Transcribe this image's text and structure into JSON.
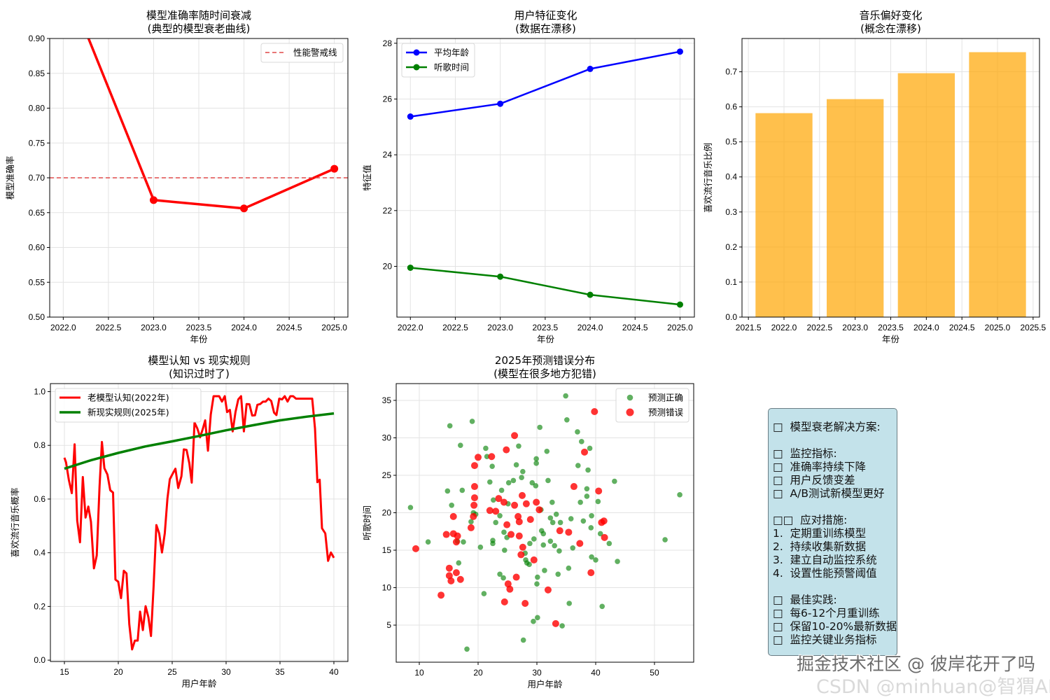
{
  "chart_data": [
    {
      "type": "line",
      "title": [
        "模型准确率随时间衰减",
        "(典型的模型衰老曲线)"
      ],
      "xlabel": "年份",
      "ylabel": "模型准确率",
      "xlim": [
        2021.85,
        2025.15
      ],
      "ylim": [
        0.5,
        0.9
      ],
      "xticks": [
        2022.0,
        2022.5,
        2023.0,
        2023.5,
        2024.0,
        2024.5,
        2025.0
      ],
      "xtick_labels": [
        "2022.0",
        "2022.5",
        "2023.0",
        "2023.5",
        "2024.0",
        "2024.5",
        "2025.0"
      ],
      "yticks": [
        0.5,
        0.55,
        0.6,
        0.65,
        0.7,
        0.75,
        0.8,
        0.85,
        0.9
      ],
      "ytick_labels": [
        "0.50",
        "0.55",
        "0.60",
        "0.65",
        "0.70",
        "0.75",
        "0.80",
        "0.85",
        "0.90"
      ],
      "grid": true,
      "legend": "top-right",
      "series": [
        {
          "name": "模型准确率",
          "kind": "line",
          "color": "#ff0000",
          "x": [
            2022,
            2023,
            2024,
            2025
          ],
          "y": [
            0.99,
            0.668,
            0.656,
            0.713
          ],
          "marker": true,
          "in_legend": false
        },
        {
          "name": "性能警戒线",
          "kind": "hline",
          "color": "#e04a4a",
          "y": 0.7,
          "dashed": true,
          "in_legend": true
        }
      ]
    },
    {
      "type": "line",
      "title": [
        "用户特征变化",
        "(数据在漂移)"
      ],
      "xlabel": "年份",
      "ylabel": "特征值",
      "xlim": [
        2021.85,
        2025.16
      ],
      "ylim": [
        18.18,
        28.17
      ],
      "xticks": [
        2022.0,
        2022.5,
        2023.0,
        2023.5,
        2024.0,
        2024.5,
        2025.0
      ],
      "xtick_labels": [
        "2022.0",
        "2022.5",
        "2023.0",
        "2023.5",
        "2024.0",
        "2024.5",
        "2025.0"
      ],
      "yticks": [
        20,
        22,
        24,
        26,
        28
      ],
      "ytick_labels": [
        "20",
        "22",
        "24",
        "26",
        "28"
      ],
      "grid": true,
      "legend": "top-left",
      "series": [
        {
          "name": "平均年龄",
          "kind": "line",
          "color": "#0000ff",
          "x": [
            2022,
            2023,
            2024,
            2025
          ],
          "y": [
            25.37,
            25.83,
            27.08,
            27.7
          ],
          "marker": true,
          "in_legend": true
        },
        {
          "name": "听歌时间",
          "kind": "line",
          "color": "#008000",
          "x": [
            2022,
            2023,
            2024,
            2025
          ],
          "y": [
            19.95,
            19.63,
            18.98,
            18.63
          ],
          "marker": true,
          "in_legend": true
        }
      ]
    },
    {
      "type": "bar",
      "title": [
        "音乐偏好变化",
        "(概念在漂移)"
      ],
      "xlabel": "年份",
      "ylabel": "喜欢流行音乐比例",
      "xlim": [
        2021.41,
        2025.59
      ],
      "ylim": [
        0,
        0.795
      ],
      "xticks": [
        2021.5,
        2022.0,
        2022.5,
        2023.0,
        2023.5,
        2024.0,
        2024.5,
        2025.0,
        2025.5
      ],
      "xtick_labels": [
        "2021.5",
        "2022.0",
        "2022.5",
        "2023.0",
        "2023.5",
        "2024.0",
        "2024.5",
        "2025.0",
        "2025.5"
      ],
      "yticks": [
        0,
        0.1,
        0.2,
        0.3,
        0.4,
        0.5,
        0.6,
        0.7
      ],
      "ytick_labels": [
        "0.0",
        "0.1",
        "0.2",
        "0.3",
        "0.4",
        "0.5",
        "0.6",
        "0.7"
      ],
      "grid": true,
      "legend": "none",
      "series": [
        {
          "name": "喜欢流行音乐比例",
          "kind": "bar",
          "color": "#ffa500",
          "bar_width": 0.8,
          "x": [
            2022,
            2023,
            2024,
            2025
          ],
          "y": [
            0.582,
            0.622,
            0.696,
            0.756
          ],
          "in_legend": false
        }
      ]
    },
    {
      "type": "line",
      "title": [
        "模型认知 vs 现实规则",
        "(知识过时了)"
      ],
      "xlabel": "用户年龄",
      "ylabel": "喜欢流行音乐概率",
      "xlim": [
        13.7,
        41.3
      ],
      "ylim": [
        -0.005,
        1.03
      ],
      "xticks": [
        15,
        20,
        25,
        30,
        35,
        40
      ],
      "xtick_labels": [
        "15",
        "20",
        "25",
        "30",
        "35",
        "40"
      ],
      "yticks": [
        0,
        0.2,
        0.4,
        0.6,
        0.8,
        1.0
      ],
      "ytick_labels": [
        "0.0",
        "0.2",
        "0.4",
        "0.6",
        "0.8",
        "1.0"
      ],
      "grid": true,
      "legend": "top-left",
      "series": [
        {
          "name": "老模型认知(2022年)",
          "kind": "line",
          "color": "#ff0000",
          "width": 3,
          "in_legend": true,
          "x": [
            15.0,
            15.15,
            15.41,
            15.69,
            15.95,
            16.19,
            16.45,
            16.71,
            16.96,
            17.22,
            17.46,
            17.74,
            18.0,
            18.26,
            18.48,
            18.71,
            18.99,
            19.25,
            19.51,
            19.73,
            19.99,
            20.25,
            20.51,
            20.76,
            21.02,
            21.28,
            21.54,
            21.8,
            22.02,
            22.28,
            22.53,
            22.79,
            23.03,
            23.27,
            23.53,
            23.79,
            24.05,
            24.31,
            24.56,
            24.78,
            25.04,
            25.3,
            25.56,
            25.86,
            26.08,
            26.33,
            26.59,
            26.81,
            27.07,
            27.33,
            27.59,
            27.85,
            28.06,
            28.32,
            28.58,
            28.84,
            29.36,
            29.62,
            29.88,
            30.09,
            30.35,
            30.61,
            30.87,
            31.13,
            31.39,
            31.65,
            31.9,
            32.16,
            32.42,
            32.68,
            32.9,
            33.16,
            33.42,
            33.67,
            33.93,
            34.19,
            34.45,
            34.67,
            34.93,
            35.19,
            35.44,
            35.7,
            35.96,
            36.22,
            36.48,
            37.99,
            38.25,
            38.47,
            38.68,
            38.9,
            39.2,
            39.46,
            39.72,
            40.0
          ],
          "y": [
            0.754,
            0.737,
            0.672,
            0.622,
            0.804,
            0.52,
            0.439,
            0.682,
            0.531,
            0.572,
            0.516,
            0.342,
            0.39,
            0.646,
            0.8125,
            0.715,
            0.691,
            0.633,
            0.624,
            0.3,
            0.292,
            0.231,
            0.333,
            0.323,
            0.134,
            0.04,
            0.073,
            0.073,
            0.181,
            0.112,
            0.201,
            0.16,
            0.09,
            0.273,
            0.503,
            0.472,
            0.401,
            0.472,
            0.602,
            0.674,
            0.694,
            0.713,
            0.641,
            0.685,
            0.785,
            0.783,
            0.733,
            0.661,
            0.885,
            0.863,
            0.83,
            0.863,
            0.893,
            0.78,
            0.915,
            0.983,
            0.983,
            0.963,
            0.983,
            0.924,
            0.932,
            0.852,
            0.924,
            0.971,
            0.983,
            0.852,
            0.954,
            0.953,
            0.911,
            0.912,
            0.951,
            0.954,
            0.963,
            0.963,
            0.974,
            0.965,
            0.922,
            0.913,
            0.974,
            0.971,
            0.983,
            0.963,
            0.983,
            0.983,
            0.974,
            0.974,
            0.863,
            0.663,
            0.672,
            0.491,
            0.472,
            0.37,
            0.401,
            0.381
          ]
        },
        {
          "name": "新现实规则(2025年)",
          "kind": "line",
          "color": "#008000",
          "width": 3.5,
          "in_legend": true,
          "x": [
            15,
            17.5,
            20,
            22.5,
            25,
            27.5,
            30,
            32.5,
            35,
            37.5,
            40
          ],
          "y": [
            0.713,
            0.745,
            0.772,
            0.796,
            0.815,
            0.835,
            0.856,
            0.875,
            0.893,
            0.907,
            0.919
          ]
        }
      ]
    },
    {
      "type": "scatter",
      "title": [
        "2025年预测错误分布",
        "(模型在很多地方犯错)"
      ],
      "xlabel": "用户年龄",
      "ylabel": "听歌时间",
      "xlim": [
        6.07,
        56.67
      ],
      "ylim": [
        0.05,
        37.24
      ],
      "xticks": [
        10,
        20,
        30,
        40,
        50
      ],
      "xtick_labels": [
        "10",
        "20",
        "30",
        "40",
        "50"
      ],
      "yticks": [
        5,
        10,
        15,
        20,
        25,
        30,
        35
      ],
      "ytick_labels": [
        "5",
        "10",
        "15",
        "20",
        "25",
        "30",
        "35"
      ],
      "grid": true,
      "legend": "top-right",
      "series": [
        {
          "name": "预测正确",
          "kind": "scatter",
          "color": "#008000",
          "radius": 3.8,
          "opacity": 0.62,
          "in_legend": true,
          "x": [
            8.5,
            11.5,
            15.2,
            17.0,
            19.0,
            18.1,
            14.8,
            15.5,
            16.7,
            16.5,
            17.5,
            18.8,
            19.6,
            20.4,
            21.0,
            21.3,
            21.5,
            22.0,
            22.4,
            22.6,
            22.5,
            22.5,
            23.7,
            23.0,
            23.7,
            24.4,
            24.5,
            24.9,
            25.1,
            25.2,
            26.0,
            26.5,
            26.9,
            27.4,
            27.6,
            27.7,
            28.0,
            28.1,
            28.3,
            28.7,
            28.8,
            29.2,
            29.5,
            29.8,
            29.9,
            29.9,
            30.1,
            30.5,
            30.7,
            30.8,
            31.1,
            31.1,
            31.7,
            31.9,
            32.3,
            32.3,
            32.6,
            32.7,
            33.3,
            33.6,
            33.8,
            34.0,
            34.3,
            34.9,
            35.1,
            35.4,
            35.5,
            35.8,
            36.1,
            36.9,
            37.0,
            37.4,
            37.6,
            37.9,
            38.5,
            38.7,
            39.0,
            39.2,
            40.0,
            40.4,
            40.8,
            41.1,
            43.2,
            43.7,
            51.8,
            54.3,
            42.3,
            33.0,
            30.0,
            31.3,
            38.5,
            39.3,
            39.3,
            30.1,
            29.4,
            24.3,
            24.0,
            17.3,
            19.2
          ],
          "y": [
            20.7,
            16.1,
            31.6,
            29.0,
            32.2,
            1.8,
            22.9,
            21.0,
            13.3,
            16.2,
            16.1,
            18.8,
            19.8,
            15.4,
            9.2,
            28.6,
            27.5,
            24.1,
            26.2,
            21.7,
            16.3,
            15.9,
            11.8,
            18.7,
            19.6,
            17.4,
            15.0,
            16.7,
            21.2,
            24.0,
            24.3,
            26.4,
            28.9,
            24.7,
            25.5,
            3.0,
            14.6,
            13.7,
            13.3,
            13.1,
            15.9,
            24.0,
            16.5,
            23.6,
            27.2,
            26.6,
            11.4,
            31.4,
            20.4,
            17.6,
            17.2,
            15.7,
            28.2,
            24.3,
            19.3,
            16.2,
            21.4,
            18.7,
            19.8,
            11.8,
            14.9,
            18.7,
            4.9,
            35.6,
            32.4,
            12.6,
            7.9,
            19.2,
            15.3,
            30.8,
            26.3,
            21.4,
            29.5,
            18.9,
            23.2,
            25.7,
            28.6,
            18.0,
            13.7,
            21.5,
            17.2,
            7.5,
            24.2,
            13.5,
            16.4,
            22.4,
            15.9,
            15.6,
            10.5,
            12.3,
            22.2,
            19.6,
            14.1,
            6.0,
            5.5,
            11.3,
            23.0,
            23.0,
            20.0
          ]
        },
        {
          "name": "预测错误",
          "kind": "scatter",
          "color": "#ff0000",
          "radius": 5,
          "opacity": 0.8,
          "in_legend": true,
          "x": [
            9.4,
            13.7,
            15.1,
            15.1,
            15.4,
            16.3,
            17.0,
            14.6,
            15.8,
            16.3,
            16.5,
            18.8,
            15.8,
            19.2,
            19.3,
            19.4,
            19.4,
            19.4,
            20.0,
            22.3,
            24.8,
            26.2,
            22.0,
            23.0,
            23.5,
            24.4,
            24.9,
            25.6,
            27.0,
            26.2,
            26.8,
            27.0,
            27.5,
            28.2,
            29.9,
            28.9,
            30.4,
            27.3,
            27.6,
            29.5,
            26.5,
            25.1,
            25.4,
            24.5,
            28.0,
            31.9,
            33.2,
            33.9,
            35.4,
            37.3,
            36.3,
            38.1,
            39.8,
            40.5,
            41.0,
            41.4,
            41.5,
            39.2
          ],
          "y": [
            15.2,
            9.0,
            12.6,
            11.6,
            10.9,
            12.0,
            11.1,
            17.1,
            17.2,
            16.1,
            16.9,
            18.0,
            19.5,
            19.5,
            21.0,
            22.0,
            23.5,
            26.3,
            27.4,
            27.5,
            28.4,
            30.3,
            20.3,
            20.2,
            21.9,
            21.4,
            18.4,
            17.1,
            16.9,
            21.0,
            19.5,
            18.8,
            22.3,
            21.2,
            21.4,
            19.1,
            20.4,
            14.4,
            15.4,
            13.7,
            11.4,
            10.5,
            9.8,
            8.1,
            7.9,
            9.7,
            5.2,
            17.6,
            17.4,
            15.9,
            23.5,
            28.1,
            33.5,
            22.9,
            18.7,
            18.9,
            16.7,
            12.0
          ]
        }
      ]
    }
  ],
  "info_box": {
    "lines": [
      "□  模型衰老解决方案:",
      "",
      "□  监控指标:",
      "□  准确率持续下降",
      "□  用户反馈变差",
      "□  A/B测试新模型更好",
      "",
      "□□  应对措施:",
      "1.  定期重训练模型",
      "2.  持续收集新数据",
      "3.  建立自动监控系统",
      "4.  设置性能预警阈值",
      "",
      "□  最佳实践:",
      "□  每6-12个月重训练",
      "□  保留10-20%最新数据",
      "□  监控关键业务指标"
    ]
  },
  "watermark": {
    "primary": "掘金技术社区 @ 彼岸花开了吗",
    "secondary": "CSDN @minhuan@智猬AI"
  }
}
